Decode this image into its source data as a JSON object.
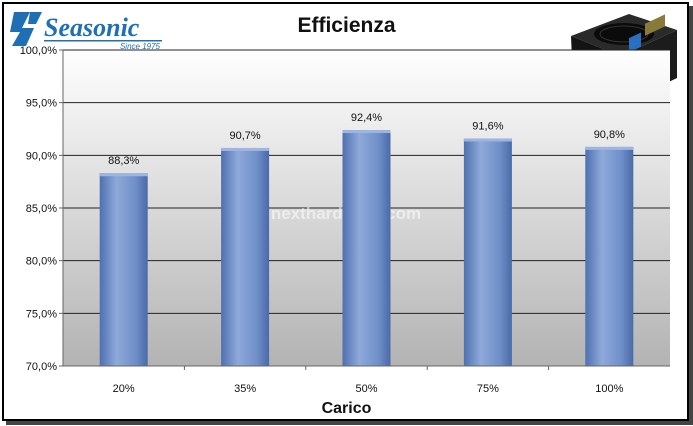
{
  "logo": {
    "brand": "Seasonic",
    "tagline": "Since 1975"
  },
  "watermark": "nexthardware.com",
  "chart_data": {
    "type": "bar",
    "title": "Efficienza",
    "xlabel": "Carico",
    "ylabel": "",
    "categories": [
      "20%",
      "35%",
      "50%",
      "75%",
      "100%"
    ],
    "values": [
      88.3,
      90.7,
      92.4,
      91.6,
      90.8
    ],
    "data_labels": [
      "88,3%",
      "90,7%",
      "92,4%",
      "91,6%",
      "90,8%"
    ],
    "ylim": [
      70,
      100
    ],
    "yticks": [
      70,
      75,
      80,
      85,
      90,
      95,
      100
    ],
    "ytick_labels": [
      "70,0%",
      "75,0%",
      "80,0%",
      "85,0%",
      "90,0%",
      "95,0%",
      "100,0%"
    ],
    "grid": true,
    "legend": "none",
    "colors": {
      "bar": "#6f8fc9",
      "bar_dark": "#4a6aa8",
      "bar_light": "#9db5e0",
      "frame": "#000000"
    }
  }
}
